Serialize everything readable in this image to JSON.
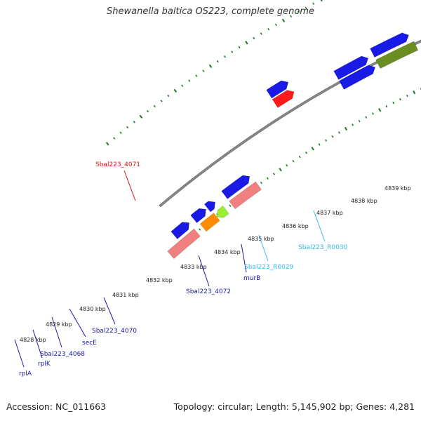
{
  "title": "Shewanella baltica OS223, complete genome",
  "footer": {
    "accession": "Accession: NC_011663",
    "topology": "Topology: circular; Length: 5,145,902 bp; Genes: 4,281"
  },
  "colors": {
    "backbone": "#888888",
    "tick": "#1e7a1e",
    "gene_blue": "#1a1ae6",
    "gene_red": "#ff1a1a",
    "gene_pink": "#f08080",
    "gene_orange": "#ff8c00",
    "gene_lime": "#99ee33",
    "gene_olive": "#6b8e23",
    "gene_cyan": "#55ccff",
    "label_blue": "#1a1aa8",
    "label_red": "#dd1111",
    "label_cyan": "#33bbee"
  },
  "ruler_labels": [
    "4828 kbp",
    "4829 kbp",
    "4830 kbp",
    "4831 kbp",
    "4832 kbp",
    "4833 kbp",
    "4834 kbp",
    "4835 kbp",
    "4836 kbp",
    "4837 kbp",
    "4838 kbp",
    "4839 kbp"
  ],
  "gene_labels": [
    {
      "text": "Sbal223_4071",
      "color": "label_red"
    },
    {
      "text": "Sbal223_4072",
      "color": "label_blue"
    },
    {
      "text": "murB",
      "color": "label_blue"
    },
    {
      "text": "Sbal223_R0029",
      "color": "label_cyan"
    },
    {
      "text": "Sbal223_R0030",
      "color": "label_cyan"
    },
    {
      "text": "Sbal223_4070",
      "color": "label_blue"
    },
    {
      "text": "secE",
      "color": "label_blue"
    },
    {
      "text": "Sbal223_4068",
      "color": "label_blue"
    },
    {
      "text": "rplK",
      "color": "label_blue"
    },
    {
      "text": "rplA",
      "color": "label_blue"
    }
  ]
}
